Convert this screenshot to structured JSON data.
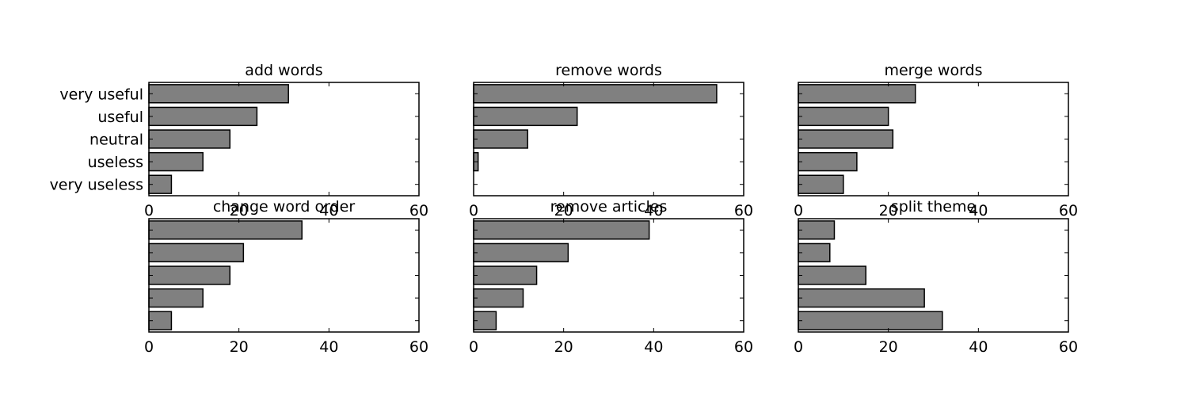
{
  "chart_data": [
    {
      "type": "bar",
      "orientation": "horizontal",
      "title": "add words",
      "categories": [
        "very useless",
        "useless",
        "neutral",
        "useful",
        "very useful"
      ],
      "values": [
        5,
        12,
        18,
        24,
        31
      ],
      "xlim": [
        0,
        60
      ],
      "xticks": [
        "0",
        "20",
        "40",
        "60"
      ],
      "show_category_labels": true
    },
    {
      "type": "bar",
      "orientation": "horizontal",
      "title": "remove words",
      "categories": [
        "very useless",
        "useless",
        "neutral",
        "useful",
        "very useful"
      ],
      "values": [
        0,
        1,
        12,
        23,
        54
      ],
      "xlim": [
        0,
        60
      ],
      "xticks": [
        "0",
        "20",
        "40",
        "60"
      ],
      "show_category_labels": false
    },
    {
      "type": "bar",
      "orientation": "horizontal",
      "title": "merge words",
      "categories": [
        "very useless",
        "useless",
        "neutral",
        "useful",
        "very useful"
      ],
      "values": [
        10,
        13,
        21,
        20,
        26
      ],
      "xlim": [
        0,
        60
      ],
      "xticks": [
        "0",
        "20",
        "40",
        "60"
      ],
      "show_category_labels": false
    },
    {
      "type": "bar",
      "orientation": "horizontal",
      "title": "change word order",
      "categories": [
        "very useless",
        "useless",
        "neutral",
        "useful",
        "very useful"
      ],
      "values": [
        5,
        12,
        18,
        21,
        34
      ],
      "xlim": [
        0,
        60
      ],
      "xticks": [
        "0",
        "20",
        "40",
        "60"
      ],
      "show_category_labels": false
    },
    {
      "type": "bar",
      "orientation": "horizontal",
      "title": "remove articles",
      "categories": [
        "very useless",
        "useless",
        "neutral",
        "useful",
        "very useful"
      ],
      "values": [
        5,
        11,
        14,
        21,
        39
      ],
      "xlim": [
        0,
        60
      ],
      "xticks": [
        "0",
        "20",
        "40",
        "60"
      ],
      "show_category_labels": false
    },
    {
      "type": "bar",
      "orientation": "horizontal",
      "title": "split theme",
      "categories": [
        "very useless",
        "useless",
        "neutral",
        "useful",
        "very useful"
      ],
      "values": [
        32,
        28,
        15,
        7,
        8
      ],
      "xlim": [
        0,
        60
      ],
      "xticks": [
        "0",
        "20",
        "40",
        "60"
      ],
      "show_category_labels": false
    }
  ],
  "colors": {
    "bar_fill": "#808080",
    "bar_edge": "#000000",
    "frame": "#000000"
  },
  "grid": false
}
